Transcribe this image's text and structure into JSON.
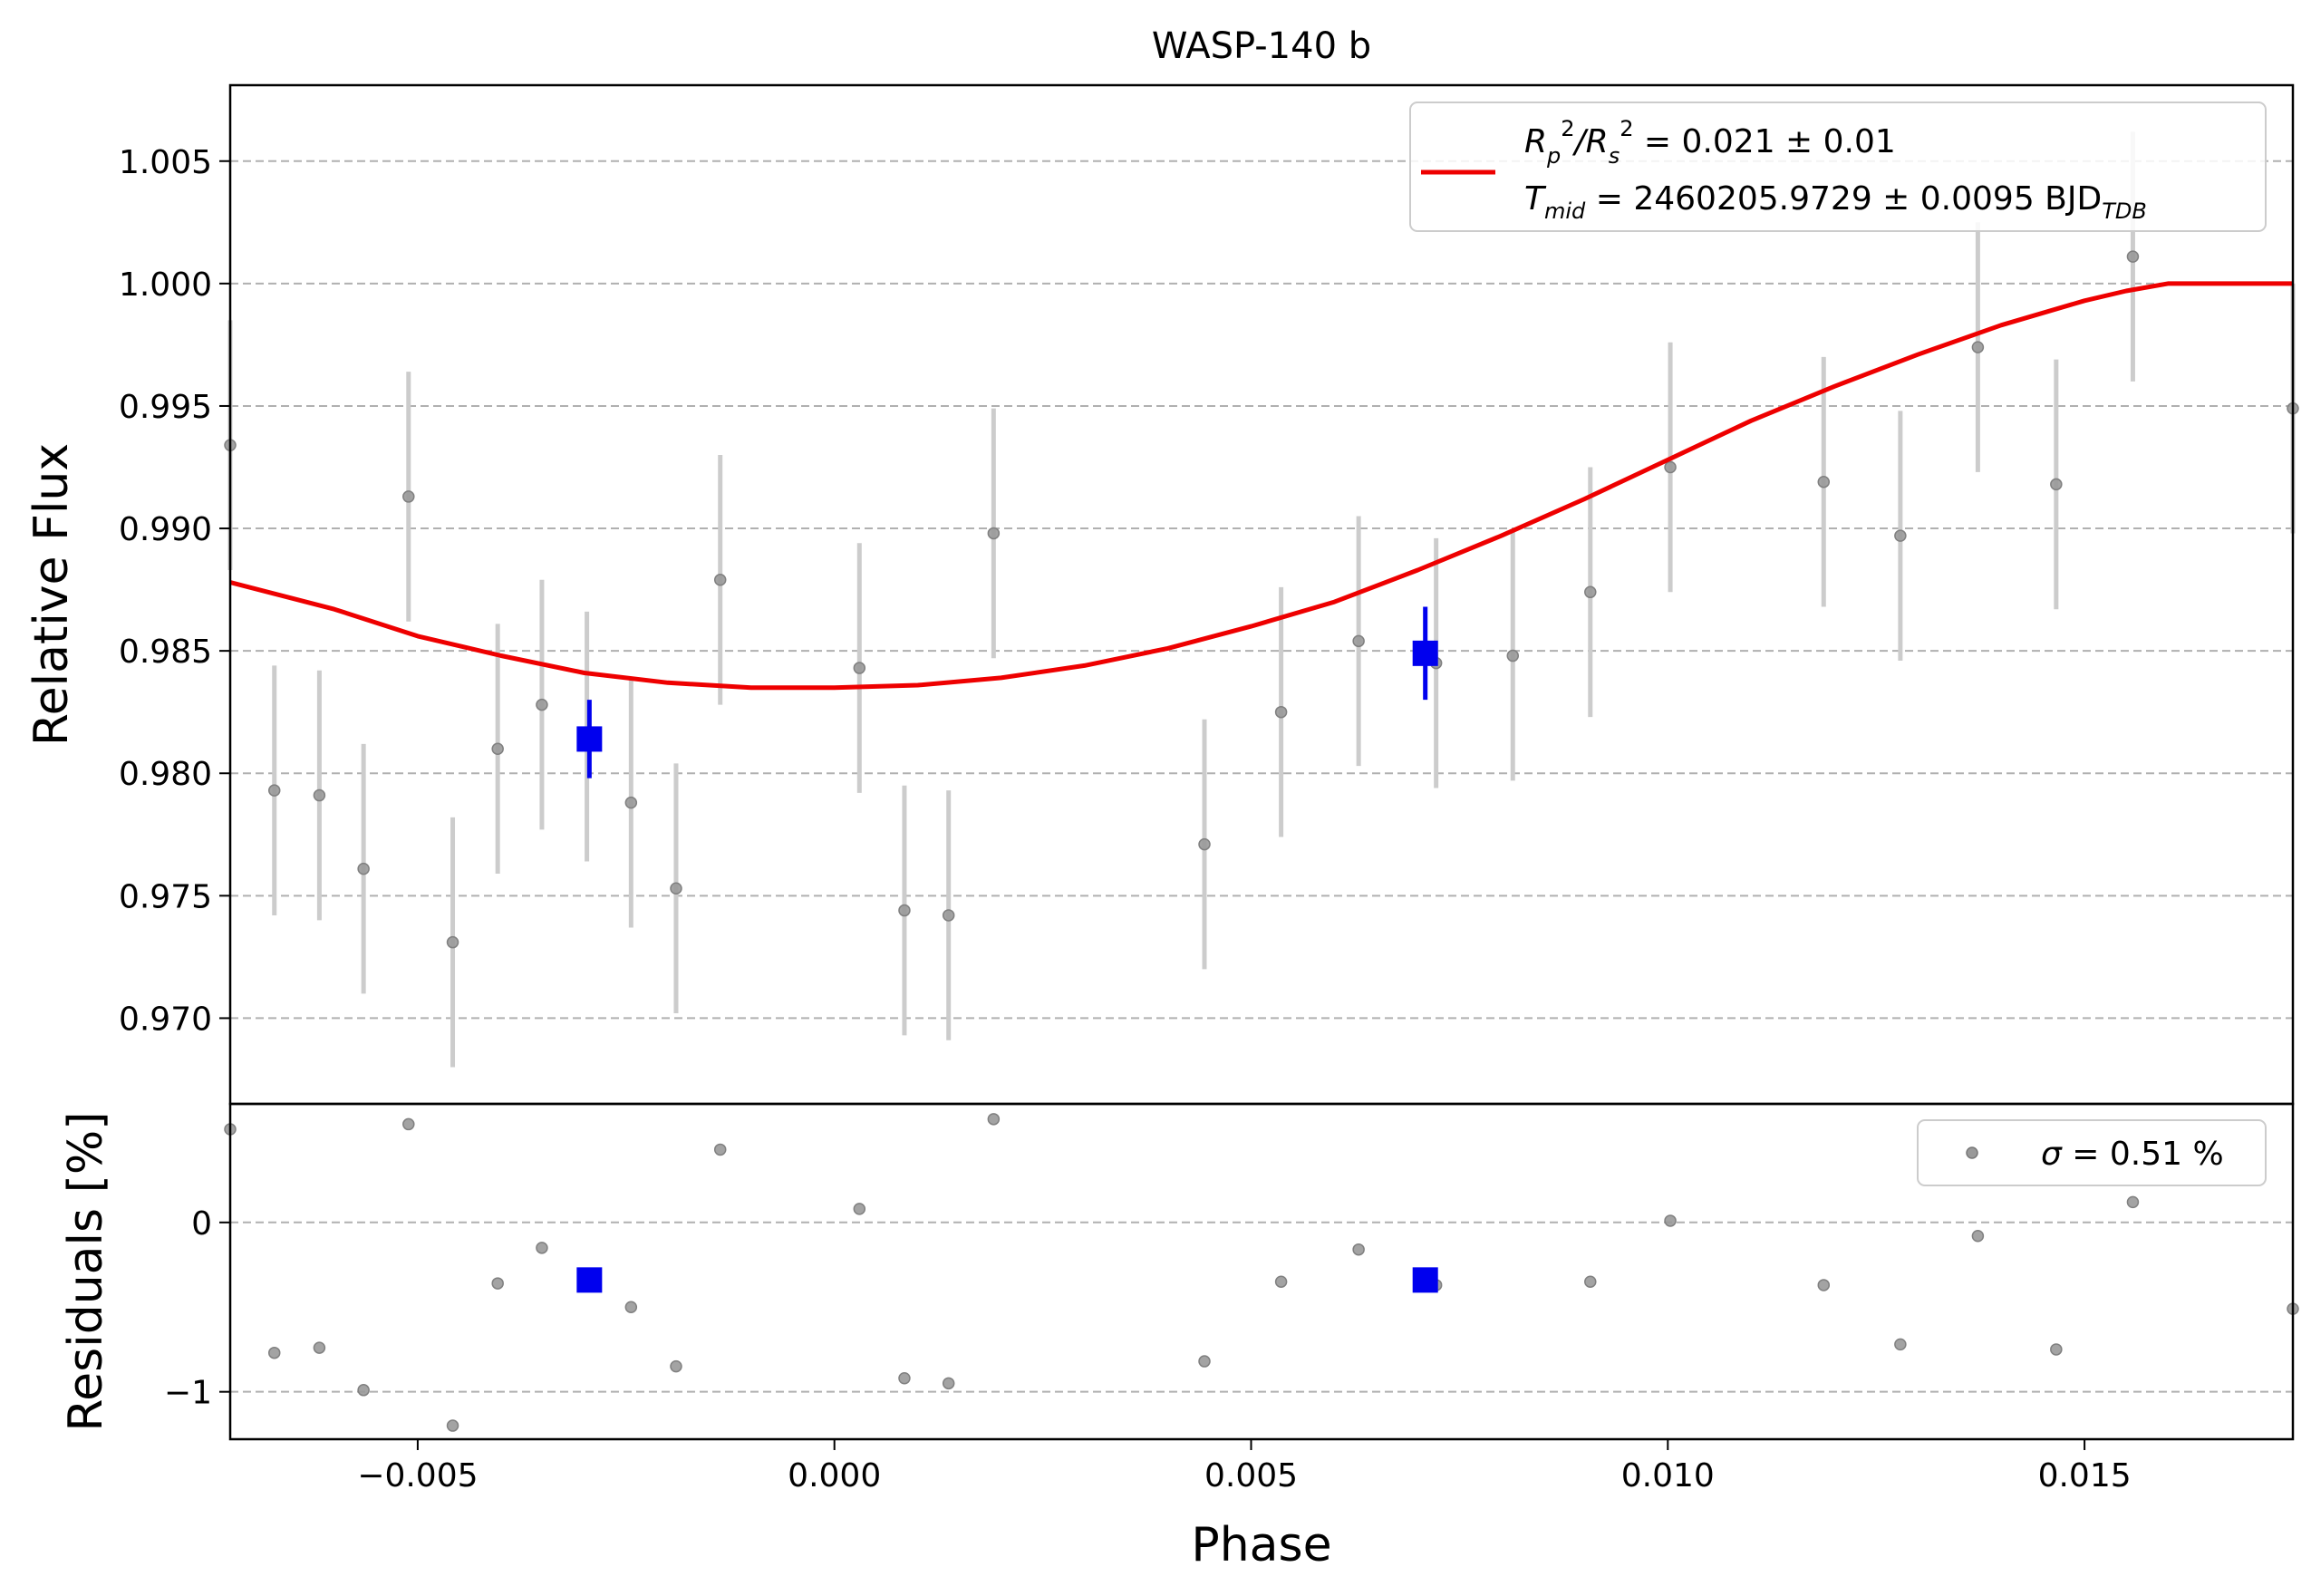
{
  "chart_data": [
    {
      "type": "scatter",
      "panel": "main",
      "title": "WASP-140 b",
      "xlabel": "Phase",
      "ylabel": "Relative Flux",
      "xlim": [
        -0.00725,
        0.0175
      ],
      "ylim": [
        0.9665,
        1.0081
      ],
      "yticks": [
        0.97,
        0.975,
        0.98,
        0.985,
        0.99,
        0.995,
        1.0,
        1.005
      ],
      "ytick_labels": [
        "0.970",
        "0.975",
        "0.980",
        "0.985",
        "0.990",
        "0.995",
        "1.000",
        "1.005"
      ],
      "grid": "y dashed",
      "legend": {
        "placement": "top-right",
        "line1_prefix": "R",
        "line1_sub1": "p",
        "line1_sup1": "2",
        "line1_mid": "/R",
        "line1_sub2": "s",
        "line1_sup2": "2",
        "line1_value": " = 0.021 ± 0.01",
        "line2_prefix": "T",
        "line2_sub": "mid",
        "line2_value": " = 2460205.9729 ± 0.0095 BJD",
        "line2_tail_sub": "TDB",
        "line_color": "#ee0000"
      },
      "data_points": {
        "color": "#999999",
        "x": [
          -0.00725,
          -0.00672,
          -0.00618,
          -0.00565,
          -0.00511,
          -0.00458,
          -0.00404,
          -0.00351,
          -0.00297,
          -0.00244,
          -0.0019,
          -0.00137,
          0.0003,
          0.00084,
          0.00137,
          0.00191,
          0.00444,
          0.00536,
          0.00629,
          0.00722,
          0.00814,
          0.00907,
          0.01003,
          0.01187,
          0.01279,
          0.01372,
          0.01466,
          0.01558,
          0.0175
        ],
        "y": [
          0.9934,
          0.9793,
          0.9791,
          0.9761,
          0.9913,
          0.9731,
          0.981,
          0.9828,
          0.9815,
          0.9788,
          0.9753,
          0.9879,
          0.9843,
          0.9744,
          0.9742,
          0.9898,
          0.9771,
          0.9825,
          0.9854,
          0.9845,
          0.9848,
          0.9874,
          0.9925,
          0.9919,
          0.9897,
          0.9974,
          0.9918,
          1.0011,
          0.9949
        ],
        "yerr": 0.0051
      },
      "binned_points": {
        "color": "#0000ee",
        "x": [
          -0.00294,
          0.00709
        ],
        "y": [
          0.9814,
          0.9849
        ],
        "yerr": [
          0.0016,
          0.0019
        ]
      },
      "model": {
        "color": "#ee0000",
        "x": [
          -0.00725,
          -0.006,
          -0.005,
          -0.004,
          -0.003,
          -0.002,
          -0.001,
          0.0,
          0.001,
          0.002,
          0.003,
          0.004,
          0.005,
          0.006,
          0.007,
          0.008,
          0.009,
          0.01,
          0.011,
          0.012,
          0.013,
          0.014,
          0.015,
          0.0155,
          0.016,
          0.0175
        ],
        "y": [
          0.9878,
          0.9867,
          0.9856,
          0.9848,
          0.9841,
          0.9837,
          0.9835,
          0.9835,
          0.9836,
          0.9839,
          0.9844,
          0.9851,
          0.986,
          0.987,
          0.9883,
          0.9897,
          0.9912,
          0.9928,
          0.9944,
          0.9958,
          0.9971,
          0.9983,
          0.9993,
          0.9997,
          1.0,
          1.0
        ]
      }
    },
    {
      "type": "scatter",
      "panel": "residuals",
      "xlabel": "Phase",
      "ylabel": "Residuals [%]",
      "xlim": [
        -0.00725,
        0.0175
      ],
      "ylim": [
        -1.28,
        0.7
      ],
      "yticks": [
        0,
        -1
      ],
      "ytick_labels": [
        "0",
        "−1"
      ],
      "xticks": [
        -0.005,
        0.0,
        0.005,
        0.01,
        0.015
      ],
      "xtick_labels": [
        "−0.005",
        "0.000",
        "0.005",
        "0.010",
        "0.015"
      ],
      "grid": "y dashed",
      "legend": {
        "placement": "top-right",
        "sigma_symbol": "σ",
        "text": " = 0.51 %",
        "marker_color": "#999999"
      },
      "data_points": {
        "color": "#999999",
        "x": [
          -0.00725,
          -0.00672,
          -0.00618,
          -0.00565,
          -0.00511,
          -0.00458,
          -0.00404,
          -0.00351,
          -0.00244,
          -0.0019,
          -0.00137,
          0.0003,
          0.00084,
          0.00137,
          0.00191,
          0.00444,
          0.00536,
          0.00629,
          0.00722,
          0.00907,
          0.01003,
          0.01187,
          0.01279,
          0.01372,
          0.01466,
          0.01558,
          0.0175
        ],
        "y": [
          0.55,
          -0.77,
          -0.74,
          -0.99,
          0.58,
          -1.2,
          -0.36,
          -0.15,
          -0.5,
          -0.85,
          0.43,
          0.08,
          -0.92,
          -0.95,
          0.61,
          -0.82,
          -0.35,
          -0.16,
          -0.37,
          -0.35,
          0.01,
          -0.37,
          -0.72,
          -0.08,
          -0.75,
          0.12,
          -0.51
        ]
      },
      "binned_points": {
        "color": "#0000ee",
        "x": [
          -0.00294,
          0.00709
        ],
        "y": [
          -0.34,
          -0.34
        ]
      }
    }
  ]
}
